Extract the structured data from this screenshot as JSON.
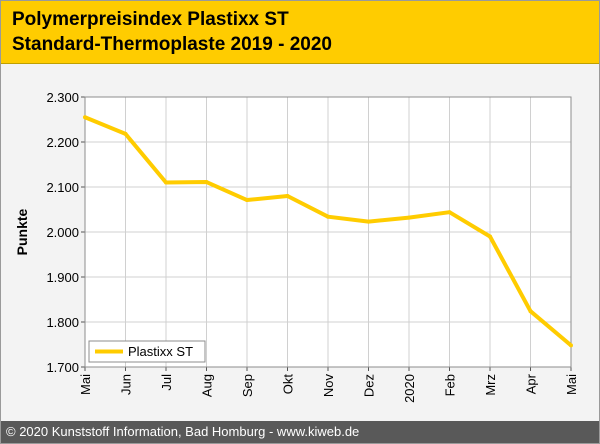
{
  "header": {
    "title_line1": "Polymerpreisindex Plastixx ST",
    "title_line2": "Standard-Thermoplaste 2019 - 2020"
  },
  "footer": {
    "text": "© 2020 Kunststoff Information, Bad Homburg - www.kiweb.de"
  },
  "colors": {
    "accent": "#ffcc00",
    "series": "#ffcc00",
    "footer_bg": "#595959",
    "plot_bg": "#ffffff",
    "panel_bg": "#f3f3f3"
  },
  "chart_data": {
    "type": "line",
    "title": "Polymerpreisindex Plastixx ST Standard-Thermoplaste 2019 - 2020",
    "xlabel": "",
    "ylabel": "Punkte",
    "categories": [
      "Mai",
      "Jun",
      "Jul",
      "Aug",
      "Sep",
      "Okt",
      "Nov",
      "Dez",
      "2020",
      "Feb",
      "Mrz",
      "Apr",
      "Mai"
    ],
    "ylim": [
      1700,
      2300
    ],
    "yticks": [
      1700,
      1800,
      1900,
      2000,
      2100,
      2200,
      2300
    ],
    "ytick_labels": [
      "1.700",
      "1.800",
      "1.900",
      "2.000",
      "2.100",
      "2.200",
      "2.300"
    ],
    "grid": true,
    "legend_position": "bottom-left",
    "series": [
      {
        "name": "Plastixx ST",
        "color": "#ffcc00",
        "values": [
          2255,
          2218,
          2110,
          2111,
          2071,
          2080,
          2034,
          2023,
          2032,
          2044,
          1990,
          1824,
          1748
        ]
      }
    ]
  }
}
